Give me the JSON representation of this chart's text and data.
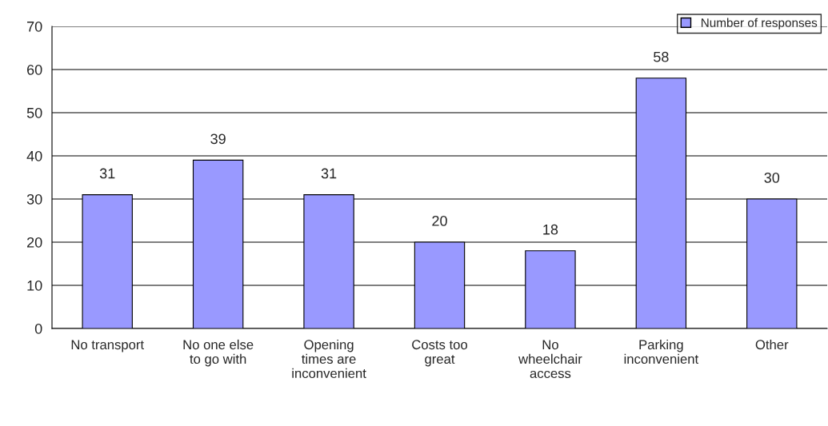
{
  "chart_data": {
    "type": "bar",
    "categories": [
      "No transport",
      "No one else\nto go with",
      "Opening\ntimes are\ninconvenient",
      "Costs too\ngreat",
      "No\nwheelchair\naccess",
      "Parking\ninconvenient",
      "Other"
    ],
    "series": [
      {
        "name": "Number of responses",
        "color": "#9999ff",
        "values": [
          31,
          39,
          31,
          20,
          18,
          58,
          30
        ]
      }
    ],
    "ylim": [
      0,
      70
    ],
    "yticks": [
      0,
      10,
      20,
      30,
      40,
      50,
      60,
      70
    ],
    "grid": "y",
    "legend": "top right",
    "data_labels": true
  }
}
